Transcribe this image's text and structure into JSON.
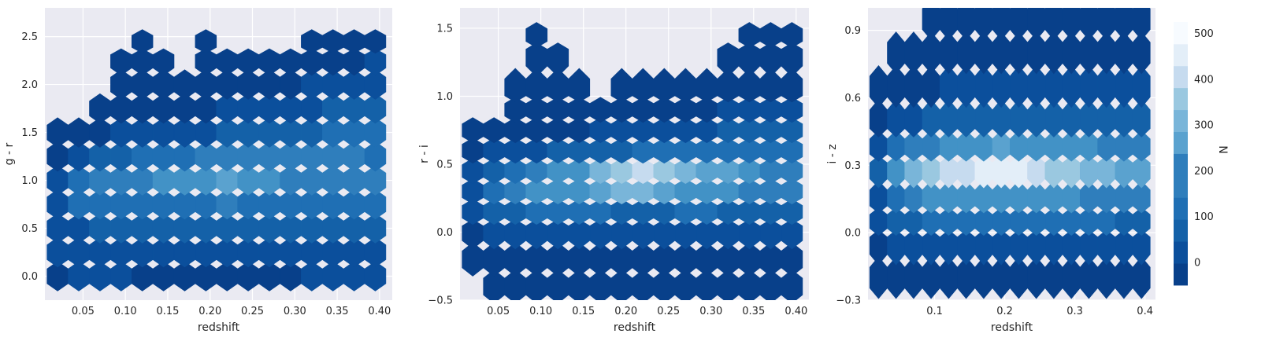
{
  "chart_data": [
    {
      "type": "heatmap",
      "style": "hexbin",
      "xlabel": "redshift",
      "ylabel": "g - r",
      "xlim": [
        0.005,
        0.415
      ],
      "ylim": [
        -0.25,
        2.8
      ],
      "xticks": [
        "0.05",
        "0.10",
        "0.15",
        "0.20",
        "0.25",
        "0.30",
        "0.35",
        "0.40"
      ],
      "yticks": [
        "0.0",
        "0.5",
        "1.0",
        "1.5",
        "2.0",
        "2.5"
      ],
      "grid": true,
      "color_scale": "Blues_r",
      "bins": {
        "x_centers": [
          0.02,
          0.045,
          0.07,
          0.095,
          0.12,
          0.145,
          0.17,
          0.195,
          0.22,
          0.245,
          0.27,
          0.295,
          0.32,
          0.345,
          0.37,
          0.395
        ],
        "y_centers": [
          0.0,
          0.25,
          0.5,
          0.75,
          1.0,
          1.25,
          1.5,
          1.75,
          2.0,
          2.25,
          2.45
        ],
        "counts": [
          [
            20,
            25,
            30,
            25,
            20,
            20,
            15,
            15,
            15,
            20,
            20,
            20,
            25,
            25,
            25,
            25
          ],
          [
            30,
            40,
            45,
            50,
            45,
            40,
            40,
            40,
            40,
            45,
            45,
            45,
            45,
            50,
            50,
            50
          ],
          [
            40,
            60,
            70,
            80,
            80,
            80,
            80,
            80,
            80,
            90,
            90,
            90,
            90,
            100,
            110,
            110
          ],
          [
            60,
            120,
            140,
            150,
            140,
            130,
            150,
            160,
            170,
            160,
            150,
            150,
            150,
            160,
            160,
            150
          ],
          [
            50,
            150,
            170,
            180,
            200,
            220,
            230,
            260,
            280,
            250,
            220,
            200,
            200,
            190,
            180,
            170
          ],
          [
            20,
            60,
            80,
            100,
            120,
            140,
            150,
            170,
            180,
            180,
            190,
            200,
            190,
            180,
            170,
            160
          ],
          [
            5,
            15,
            20,
            30,
            30,
            40,
            50,
            60,
            70,
            80,
            100,
            110,
            110,
            120,
            120,
            120
          ],
          [
            0,
            0,
            5,
            5,
            10,
            15,
            20,
            20,
            25,
            30,
            40,
            50,
            60,
            70,
            80,
            90
          ],
          [
            0,
            0,
            0,
            2,
            2,
            2,
            2,
            5,
            5,
            10,
            15,
            20,
            30,
            40,
            50,
            60
          ],
          [
            0,
            0,
            0,
            1,
            1,
            1,
            0,
            1,
            1,
            2,
            2,
            5,
            10,
            15,
            20,
            25
          ],
          [
            0,
            0,
            0,
            0,
            1,
            0,
            0,
            1,
            0,
            0,
            0,
            0,
            1,
            2,
            2,
            2
          ]
        ]
      }
    },
    {
      "type": "heatmap",
      "style": "hexbin",
      "xlabel": "redshift",
      "ylabel": "r - i",
      "xlim": [
        0.005,
        0.415
      ],
      "ylim": [
        -0.5,
        1.65
      ],
      "xticks": [
        "0.05",
        "0.10",
        "0.15",
        "0.20",
        "0.25",
        "0.30",
        "0.35",
        "0.40"
      ],
      "yticks": [
        "−0.5",
        "0.0",
        "0.5",
        "1.0",
        "1.5"
      ],
      "grid": true,
      "color_scale": "Blues_r",
      "bins": {
        "x_centers": [
          0.02,
          0.045,
          0.07,
          0.095,
          0.12,
          0.145,
          0.17,
          0.195,
          0.22,
          0.245,
          0.27,
          0.295,
          0.32,
          0.345,
          0.37,
          0.395
        ],
        "y_centers": [
          -0.4,
          -0.2,
          0.0,
          0.15,
          0.3,
          0.45,
          0.6,
          0.75,
          0.9,
          1.05,
          1.3,
          1.45
        ],
        "counts": [
          [
            0,
            2,
            2,
            5,
            5,
            2,
            2,
            2,
            2,
            2,
            2,
            2,
            2,
            5,
            5,
            5
          ],
          [
            5,
            10,
            15,
            15,
            15,
            10,
            10,
            10,
            10,
            10,
            10,
            10,
            15,
            20,
            20,
            20
          ],
          [
            20,
            40,
            50,
            60,
            60,
            60,
            50,
            50,
            50,
            50,
            60,
            60,
            60,
            60,
            60,
            60
          ],
          [
            40,
            80,
            100,
            120,
            120,
            120,
            120,
            110,
            110,
            110,
            120,
            120,
            110,
            110,
            100,
            90
          ],
          [
            60,
            160,
            190,
            240,
            250,
            260,
            280,
            320,
            330,
            300,
            260,
            230,
            220,
            200,
            180,
            170
          ],
          [
            30,
            110,
            150,
            180,
            220,
            260,
            320,
            400,
            430,
            380,
            330,
            300,
            270,
            240,
            210,
            190
          ],
          [
            10,
            30,
            50,
            60,
            70,
            80,
            90,
            110,
            120,
            130,
            150,
            160,
            160,
            160,
            160,
            150
          ],
          [
            2,
            5,
            10,
            15,
            15,
            20,
            25,
            30,
            35,
            40,
            50,
            60,
            70,
            80,
            80,
            80
          ],
          [
            0,
            0,
            2,
            5,
            5,
            5,
            5,
            5,
            10,
            10,
            15,
            20,
            25,
            30,
            35,
            40
          ],
          [
            0,
            0,
            1,
            2,
            2,
            1,
            0,
            1,
            1,
            2,
            2,
            5,
            5,
            10,
            15,
            15
          ],
          [
            0,
            0,
            0,
            1,
            1,
            0,
            0,
            0,
            0,
            0,
            0,
            0,
            1,
            1,
            2,
            2
          ],
          [
            0,
            0,
            0,
            1,
            0,
            0,
            0,
            0,
            0,
            0,
            0,
            0,
            0,
            1,
            1,
            1
          ]
        ]
      }
    },
    {
      "type": "heatmap",
      "style": "hexbin",
      "xlabel": "redshift",
      "ylabel": "i - z",
      "xlim": [
        0.005,
        0.415
      ],
      "ylim": [
        -0.3,
        1.0
      ],
      "xticks": [
        "0.1",
        "0.2",
        "0.3",
        "0.4"
      ],
      "yticks": [
        "−0.3",
        "0.0",
        "0.3",
        "0.6",
        "0.9"
      ],
      "grid": true,
      "color_scale": "Blues_r",
      "colorbar": {
        "label": "N",
        "ticks": [
          "0",
          "100",
          "200",
          "300",
          "400",
          "500"
        ],
        "range": [
          -50,
          525
        ],
        "levels": 12
      },
      "bins": {
        "x_centers": [
          0.02,
          0.045,
          0.07,
          0.095,
          0.12,
          0.145,
          0.17,
          0.195,
          0.22,
          0.245,
          0.27,
          0.295,
          0.32,
          0.345,
          0.37,
          0.395
        ],
        "y_centers": [
          -0.2,
          -0.05,
          0.05,
          0.15,
          0.28,
          0.38,
          0.5,
          0.65,
          0.8,
          0.95
        ],
        "counts": [
          [
            5,
            10,
            10,
            15,
            15,
            15,
            10,
            10,
            10,
            10,
            10,
            10,
            10,
            10,
            10,
            10
          ],
          [
            20,
            40,
            50,
            60,
            60,
            60,
            60,
            60,
            60,
            60,
            60,
            60,
            60,
            60,
            60,
            60
          ],
          [
            40,
            90,
            110,
            120,
            120,
            120,
            120,
            120,
            120,
            120,
            120,
            120,
            120,
            120,
            110,
            110
          ],
          [
            60,
            160,
            190,
            220,
            230,
            240,
            250,
            260,
            250,
            240,
            230,
            220,
            210,
            200,
            190,
            180
          ],
          [
            80,
            250,
            320,
            380,
            410,
            430,
            460,
            490,
            470,
            440,
            400,
            370,
            340,
            310,
            290,
            270
          ],
          [
            40,
            140,
            180,
            210,
            220,
            230,
            250,
            270,
            260,
            250,
            240,
            230,
            220,
            210,
            200,
            190
          ],
          [
            10,
            40,
            60,
            70,
            80,
            90,
            100,
            110,
            110,
            110,
            110,
            110,
            110,
            100,
            100,
            90
          ],
          [
            2,
            10,
            15,
            20,
            25,
            30,
            35,
            40,
            45,
            45,
            45,
            45,
            45,
            40,
            40,
            35
          ],
          [
            0,
            2,
            3,
            5,
            5,
            5,
            5,
            10,
            10,
            10,
            10,
            10,
            10,
            10,
            10,
            10
          ],
          [
            0,
            0,
            0,
            1,
            1,
            1,
            1,
            2,
            2,
            1,
            1,
            1,
            1,
            2,
            2,
            2
          ]
        ]
      }
    }
  ]
}
